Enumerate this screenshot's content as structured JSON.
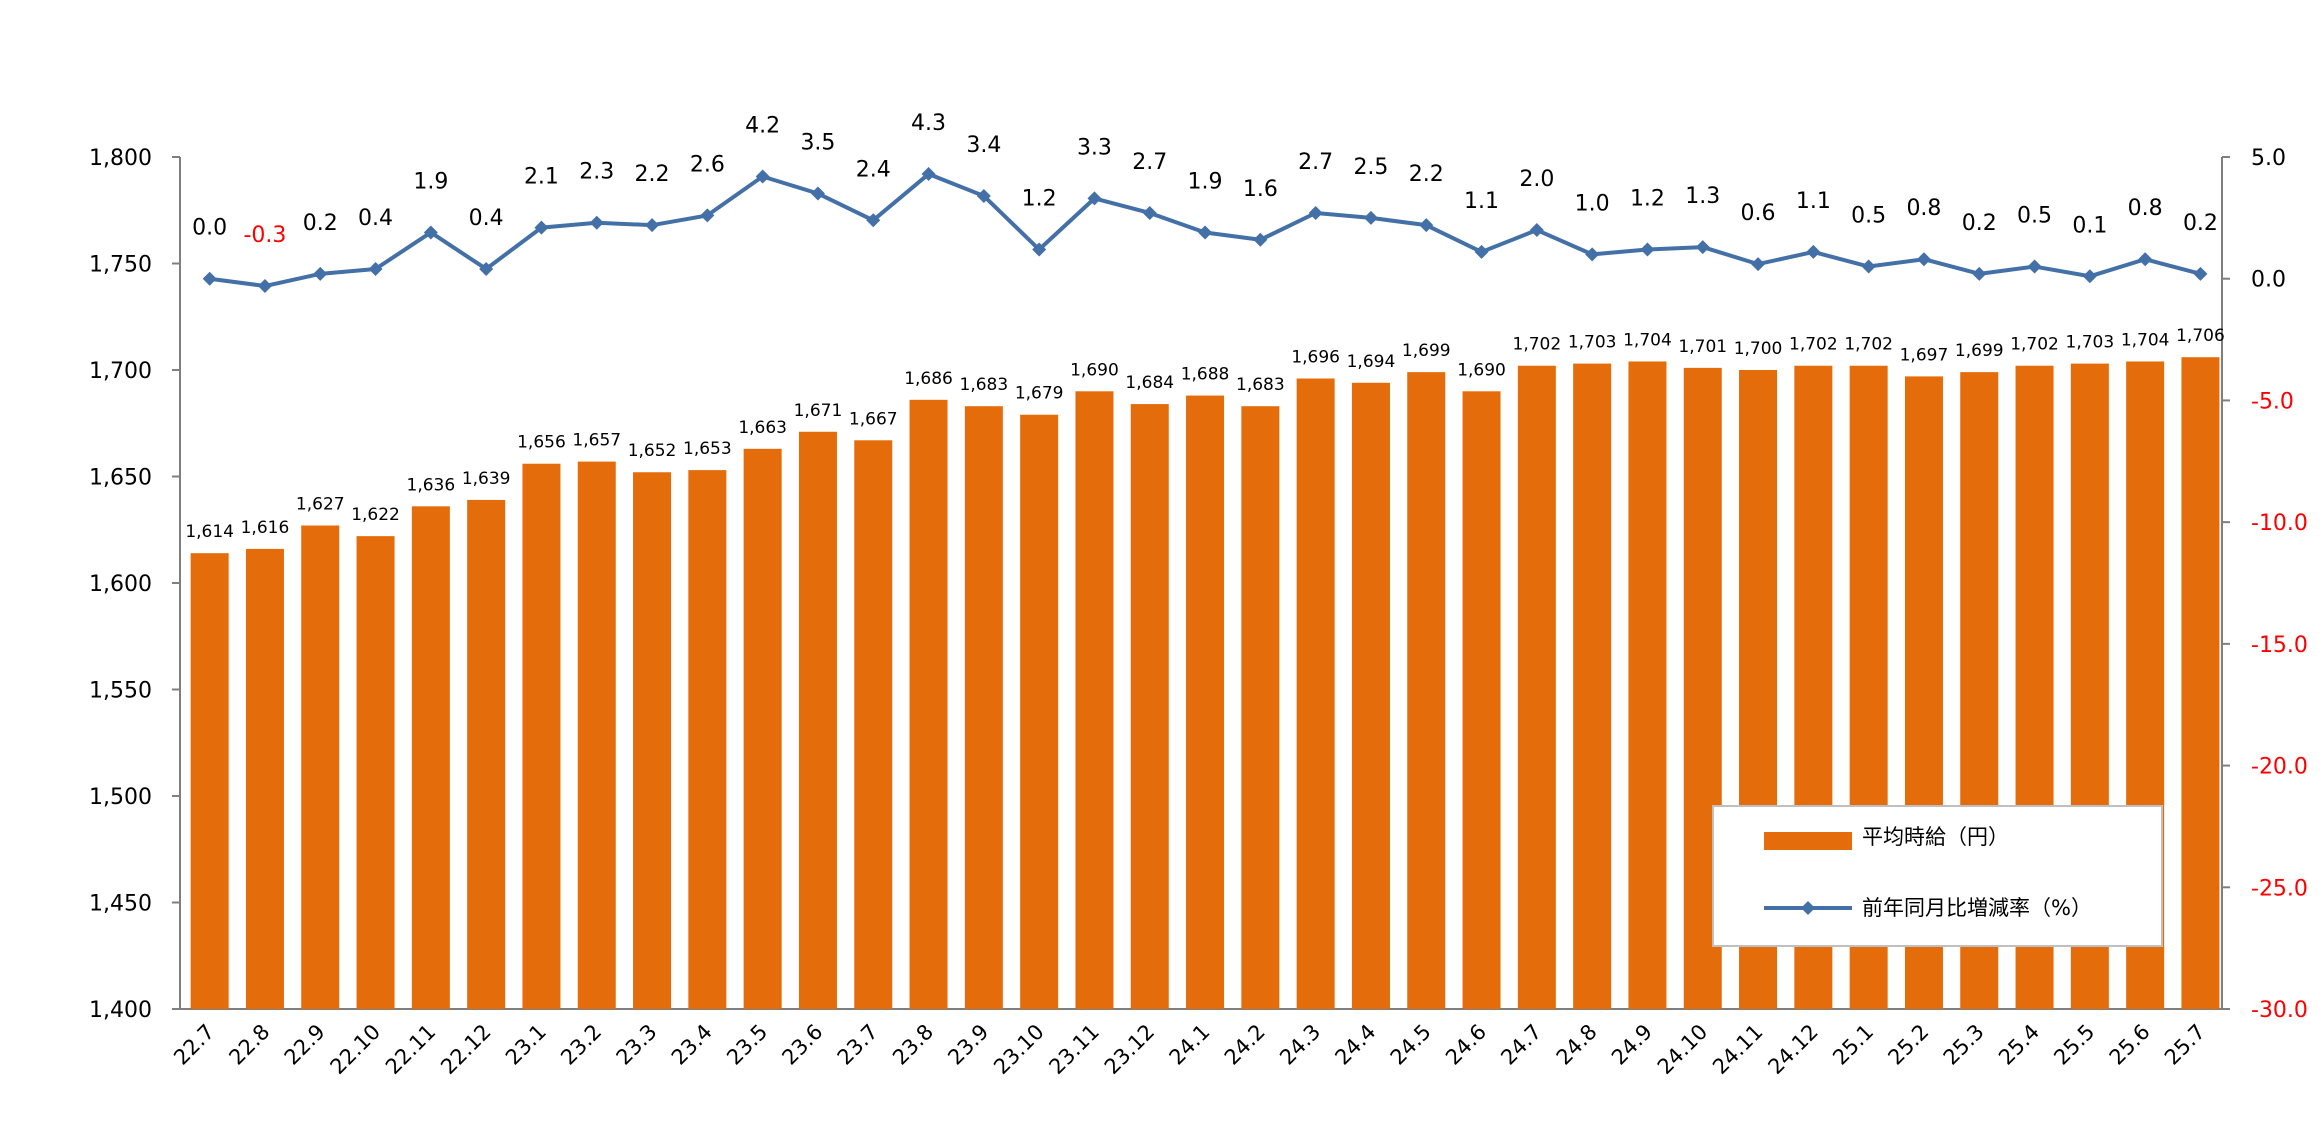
{
  "chart_data": {
    "type": "bar",
    "categories": [
      "22.7",
      "22.8",
      "22.9",
      "22.10",
      "22.11",
      "22.12",
      "23.1",
      "23.2",
      "23.3",
      "23.4",
      "23.5",
      "23.6",
      "23.7",
      "23.8",
      "23.9",
      "23.10",
      "23.11",
      "23.12",
      "24.1",
      "24.2",
      "24.3",
      "24.4",
      "24.5",
      "24.6",
      "24.7",
      "24.8",
      "24.9",
      "24.10",
      "24.11",
      "24.12",
      "25.1",
      "25.2",
      "25.3",
      "25.4",
      "25.5",
      "25.6",
      "25.7"
    ],
    "series": [
      {
        "name": "平均時給（円）",
        "type": "bar",
        "axis": "left",
        "color": "#E46C0A",
        "values": [
          1614,
          1616,
          1627,
          1622,
          1636,
          1639,
          1656,
          1657,
          1652,
          1653,
          1663,
          1671,
          1667,
          1686,
          1683,
          1679,
          1690,
          1684,
          1688,
          1683,
          1696,
          1694,
          1699,
          1690,
          1702,
          1703,
          1704,
          1701,
          1700,
          1702,
          1702,
          1697,
          1699,
          1702,
          1703,
          1704,
          1706
        ]
      },
      {
        "name": "前年同月比増減率（%）",
        "type": "line",
        "axis": "right",
        "color": "#4470A8",
        "values": [
          0.0,
          -0.3,
          0.2,
          0.4,
          1.9,
          0.4,
          2.1,
          2.3,
          2.2,
          2.6,
          4.2,
          3.5,
          2.4,
          4.3,
          3.4,
          1.2,
          3.3,
          2.7,
          1.9,
          1.6,
          2.7,
          2.5,
          2.2,
          1.1,
          2.0,
          1.0,
          1.2,
          1.3,
          0.6,
          1.1,
          0.5,
          0.8,
          0.2,
          0.5,
          0.1,
          0.8,
          0.2
        ]
      }
    ],
    "y_left": {
      "min": 1400,
      "max": 1800,
      "ticks": [
        "1,400",
        "1,450",
        "1,500",
        "1,550",
        "1,600",
        "1,650",
        "1,700",
        "1,750",
        "1,800"
      ]
    },
    "y_right": {
      "min": -30,
      "max": 5,
      "ticks": [
        "-30.0",
        "-25.0",
        "-20.0",
        "-15.0",
        "-10.0",
        "-5.0",
        "0.0",
        "5.0"
      ]
    },
    "negative_color": "#FF0000",
    "legend": {
      "placement": "bottom-right"
    },
    "grid": false
  }
}
